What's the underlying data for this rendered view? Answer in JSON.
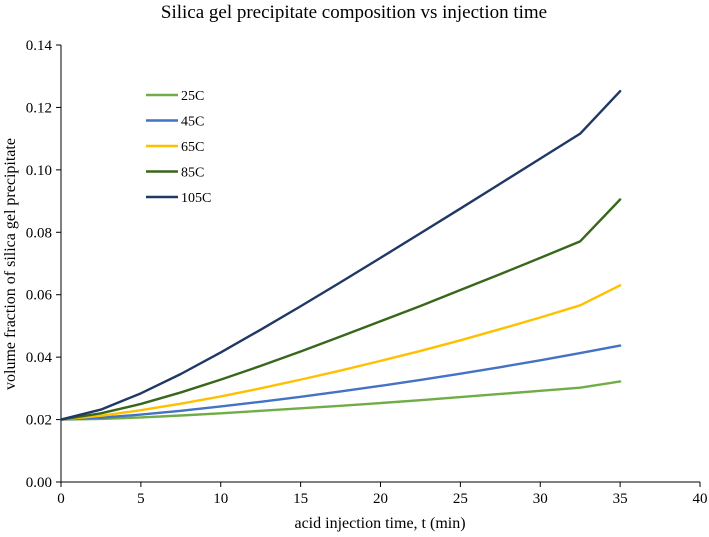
{
  "chart_data": {
    "type": "line",
    "title": "Silica gel precipitate composition vs injection time",
    "xlabel": "acid injection time, t (min)",
    "ylabel": "volume fraction of silica gel precipitate",
    "xlim": [
      0,
      40
    ],
    "ylim": [
      0,
      0.14
    ],
    "xticks": [
      0,
      5,
      10,
      15,
      20,
      25,
      30,
      35,
      40
    ],
    "yticks": [
      0.0,
      0.02,
      0.04,
      0.06,
      0.08,
      0.1,
      0.12,
      0.14
    ],
    "xtick_labels": [
      "0",
      "5",
      "10",
      "15",
      "20",
      "25",
      "30",
      "35",
      "40"
    ],
    "ytick_labels": [
      "0.00",
      "0.02",
      "0.04",
      "0.06",
      "0.08",
      "0.10",
      "0.12",
      "0.14"
    ],
    "grid": false,
    "legend_position": "top-left inside",
    "x": [
      0,
      2.5,
      5,
      7.5,
      10,
      12.5,
      15,
      17.5,
      20,
      22.5,
      25,
      27.5,
      30,
      32.5,
      35
    ],
    "series": [
      {
        "name": "25C",
        "color": "#70ad47",
        "values": [
          0.02,
          0.0202,
          0.0207,
          0.0213,
          0.022,
          0.0228,
          0.0236,
          0.0244,
          0.0253,
          0.0262,
          0.0272,
          0.0282,
          0.0292,
          0.0302,
          0.0322
        ]
      },
      {
        "name": "45C",
        "color": "#4472c4",
        "values": [
          0.02,
          0.0206,
          0.0216,
          0.0228,
          0.0242,
          0.0257,
          0.0273,
          0.029,
          0.0308,
          0.0327,
          0.0347,
          0.0368,
          0.039,
          0.0413,
          0.0437
        ]
      },
      {
        "name": "65C",
        "color": "#ffc000",
        "values": [
          0.02,
          0.0212,
          0.023,
          0.0251,
          0.0274,
          0.03,
          0.0328,
          0.0357,
          0.0388,
          0.042,
          0.0454,
          0.049,
          0.0527,
          0.0566,
          0.063
        ]
      },
      {
        "name": "85C",
        "color": "#38671c",
        "values": [
          0.02,
          0.022,
          0.025,
          0.0287,
          0.0328,
          0.0372,
          0.0418,
          0.0466,
          0.0515,
          0.0564,
          0.0615,
          0.0666,
          0.0718,
          0.0771,
          0.0905
        ]
      },
      {
        "name": "105C",
        "color": "#1f3864",
        "values": [
          0.02,
          0.0232,
          0.0284,
          0.0346,
          0.0415,
          0.0488,
          0.0563,
          0.064,
          0.0718,
          0.0797,
          0.0876,
          0.0956,
          0.1036,
          0.1116,
          0.1252
        ]
      }
    ]
  }
}
